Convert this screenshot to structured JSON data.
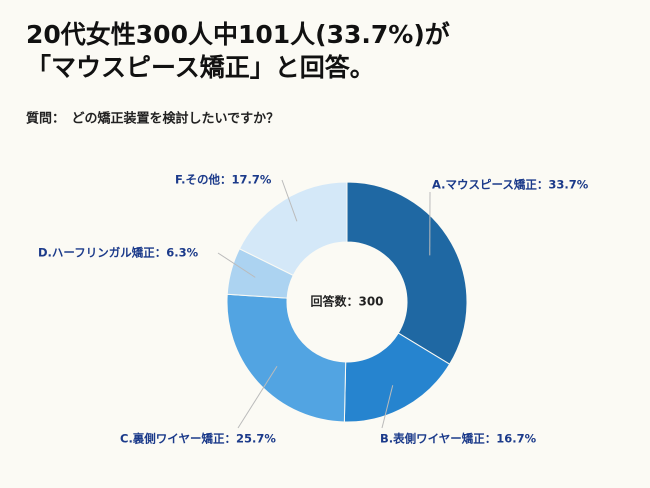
{
  "chart_data": {
    "type": "donut",
    "title": [
      "20代女性300人中101人(33.7%)が",
      "「マウスピース矯正」と回答。"
    ],
    "subtitle": "質問：　どの矯正装置を検討したいですか？",
    "center_label": "回答数：300",
    "categories": [
      "A.マウスピース矯正：33.7%",
      "B.表側ワイヤー矯正：16.7%",
      "C.裏側ワイヤー矯正：25.7%",
      "D.ハーフリンガル矯正：6.3%",
      "F.その他：17.7%"
    ],
    "values": [
      33.7,
      16.7,
      25.7,
      6.3,
      17.7
    ],
    "colors": [
      "#1f68a3",
      "#2684cf",
      "#52a4e2",
      "#acd3f1",
      "#d4e8f8"
    ]
  }
}
